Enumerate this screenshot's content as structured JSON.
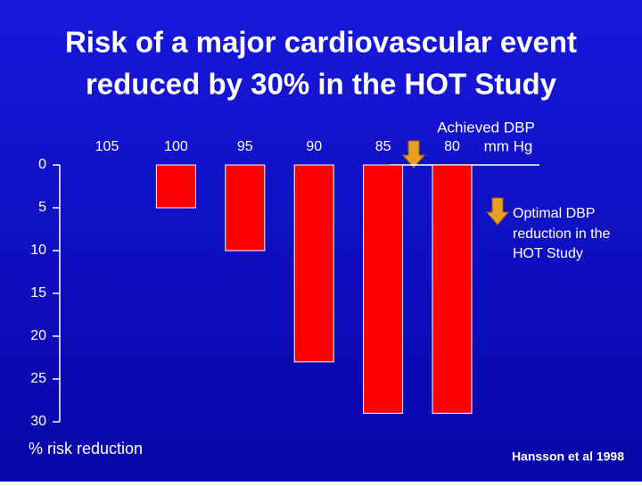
{
  "chart_data": {
    "type": "bar",
    "title_lines": [
      "Risk of a major cardiovascular event",
      "reduced by 30% in the HOT Study"
    ],
    "x_label": "Achieved DBP",
    "x_unit": "mm Hg",
    "y_label": "% risk reduction",
    "categories": [
      "105",
      "100",
      "95",
      "90",
      "85",
      "80"
    ],
    "values": [
      0,
      5,
      10,
      23,
      29,
      29
    ],
    "color": "#ff0000",
    "ylim": [
      0,
      30
    ],
    "yticks": [
      0,
      5,
      10,
      15,
      20,
      25,
      30
    ],
    "y_reversed": true,
    "annotation_lines": [
      "Optimal DBP",
      "reduction in the",
      "HOT Study"
    ],
    "source": "Hansson et al 1998"
  }
}
